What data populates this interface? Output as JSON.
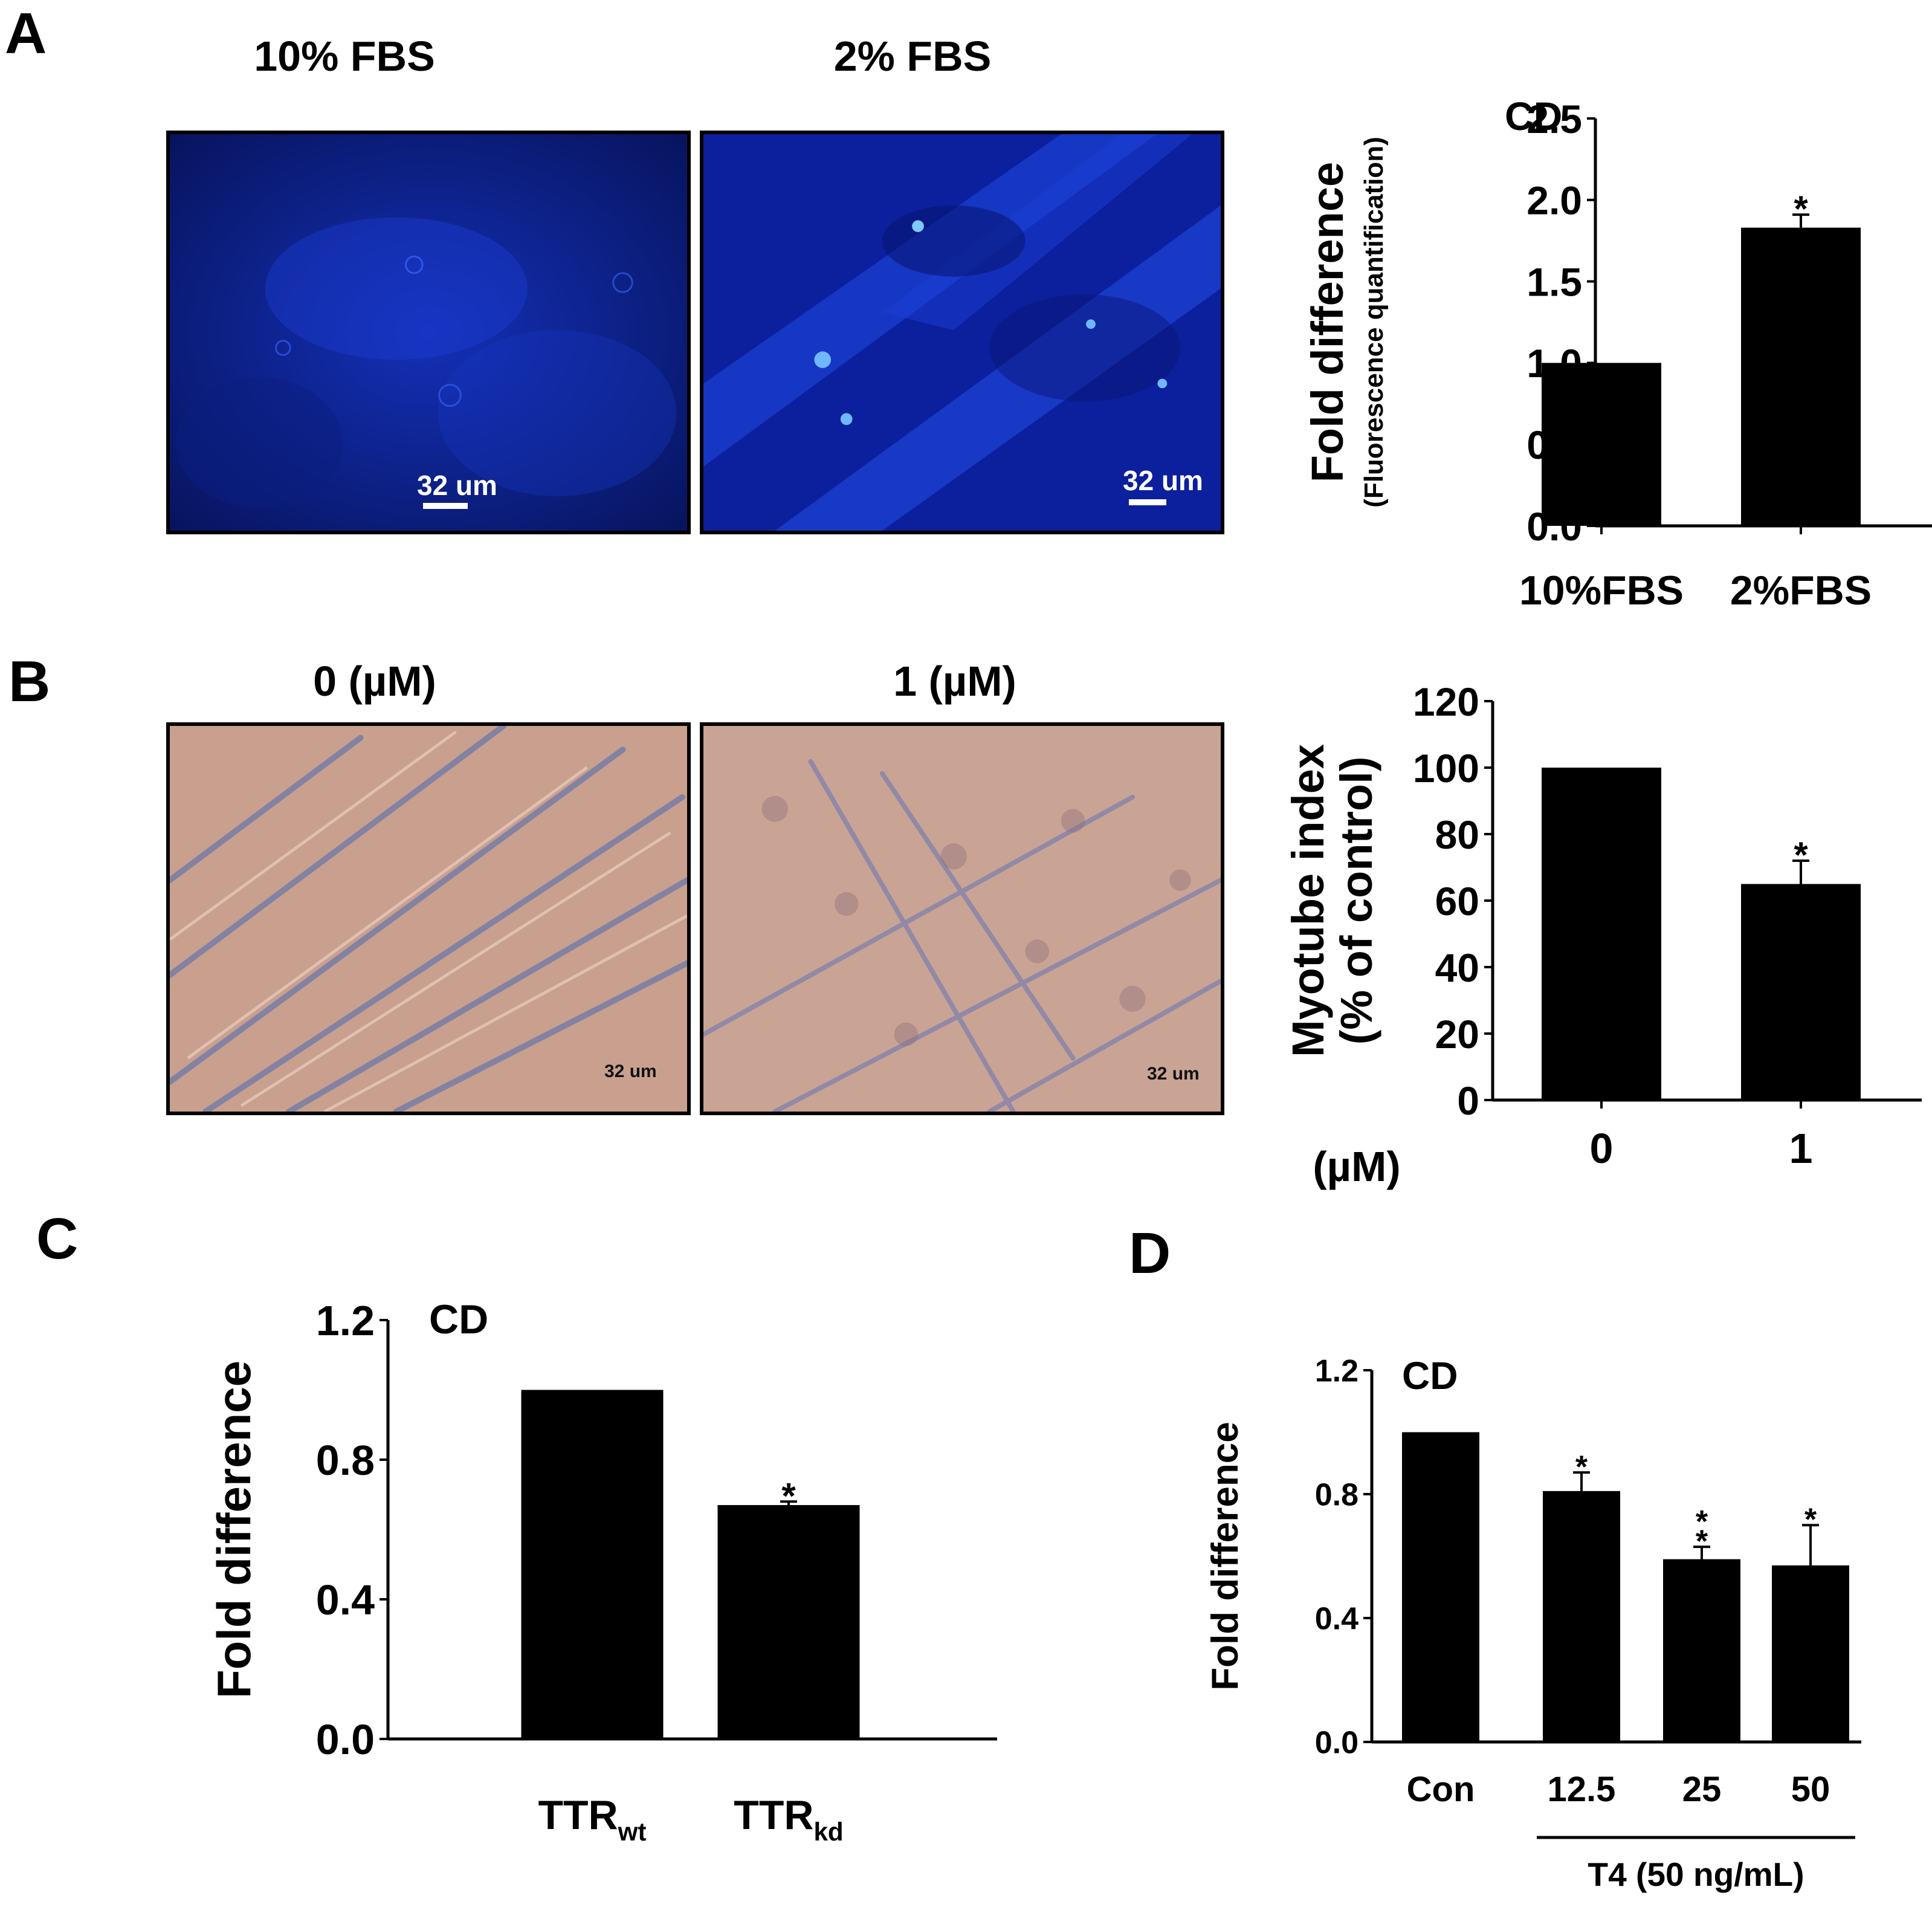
{
  "panels": {
    "A": {
      "letter": "A",
      "images": [
        {
          "title": "10% FBS",
          "scale": "32 um"
        },
        {
          "title": "2% FBS",
          "scale": "32 um"
        }
      ]
    },
    "B": {
      "letter": "B",
      "images": [
        {
          "title": "0 (µM)",
          "scale": "32 um"
        },
        {
          "title": "1 (µM)",
          "scale": "32 um"
        }
      ]
    },
    "C": {
      "letter": "C"
    },
    "D": {
      "letter": "D"
    }
  },
  "colors": {
    "bar": "#000000",
    "fluorescence": "#0a1f9a",
    "brightfield": "#c79a8a"
  },
  "chart_data": [
    {
      "id": "A",
      "type": "bar",
      "title": "CD",
      "ylabel": "Fold difference",
      "ylabel_sub": "(Fluorescence quantification)",
      "categories": [
        "10%FBS",
        "2%FBS"
      ],
      "values": [
        1.0,
        1.83
      ],
      "errors": [
        0,
        0.08
      ],
      "significance": [
        "",
        "*"
      ],
      "ylim": [
        0,
        2.5
      ],
      "yticks": [
        "0.0",
        "0.5",
        "1.0",
        "1.5",
        "2.0",
        "2.5"
      ],
      "ytick_values": [
        0,
        0.5,
        1.0,
        1.5,
        2.0,
        2.5
      ]
    },
    {
      "id": "B",
      "type": "bar",
      "title": "",
      "ylabel": "Myotube index",
      "ylabel_sub": "(% of control)",
      "xunit": "(µM)",
      "categories": [
        "0",
        "1"
      ],
      "values": [
        100,
        65
      ],
      "errors": [
        0,
        7
      ],
      "significance": [
        "",
        "*"
      ],
      "ylim": [
        0,
        120
      ],
      "yticks": [
        "0",
        "20",
        "40",
        "60",
        "80",
        "100",
        "120"
      ],
      "ytick_values": [
        0,
        20,
        40,
        60,
        80,
        100,
        120
      ]
    },
    {
      "id": "C",
      "type": "bar",
      "title": "CD",
      "ylabel": "Fold difference",
      "categories": [
        {
          "main": "TTR",
          "sub": "wt"
        },
        {
          "main": "TTR",
          "sub": "kd"
        }
      ],
      "values": [
        1.0,
        0.67
      ],
      "errors": [
        0,
        0.01
      ],
      "significance": [
        "",
        "*"
      ],
      "ylim": [
        0,
        1.2
      ],
      "yticks": [
        "0.0",
        "0.4",
        "0.8",
        "1.2"
      ],
      "ytick_values": [
        0,
        0.4,
        0.8,
        1.2
      ]
    },
    {
      "id": "D",
      "type": "bar",
      "title": "CD",
      "ylabel": "Fold difference",
      "categories": [
        "Con",
        "12.5",
        "25",
        "50"
      ],
      "values": [
        1.0,
        0.81,
        0.59,
        0.57
      ],
      "errors": [
        0,
        0.06,
        0.04,
        0.13
      ],
      "significance": [
        "",
        "*",
        "*\n*",
        "*"
      ],
      "group_label": "T4 (50 ng/mL)",
      "ylim": [
        0,
        1.2
      ],
      "yticks": [
        "0.0",
        "0.4",
        "0.8",
        "1.2"
      ],
      "ytick_values": [
        0,
        0.4,
        0.8,
        1.2
      ]
    }
  ]
}
